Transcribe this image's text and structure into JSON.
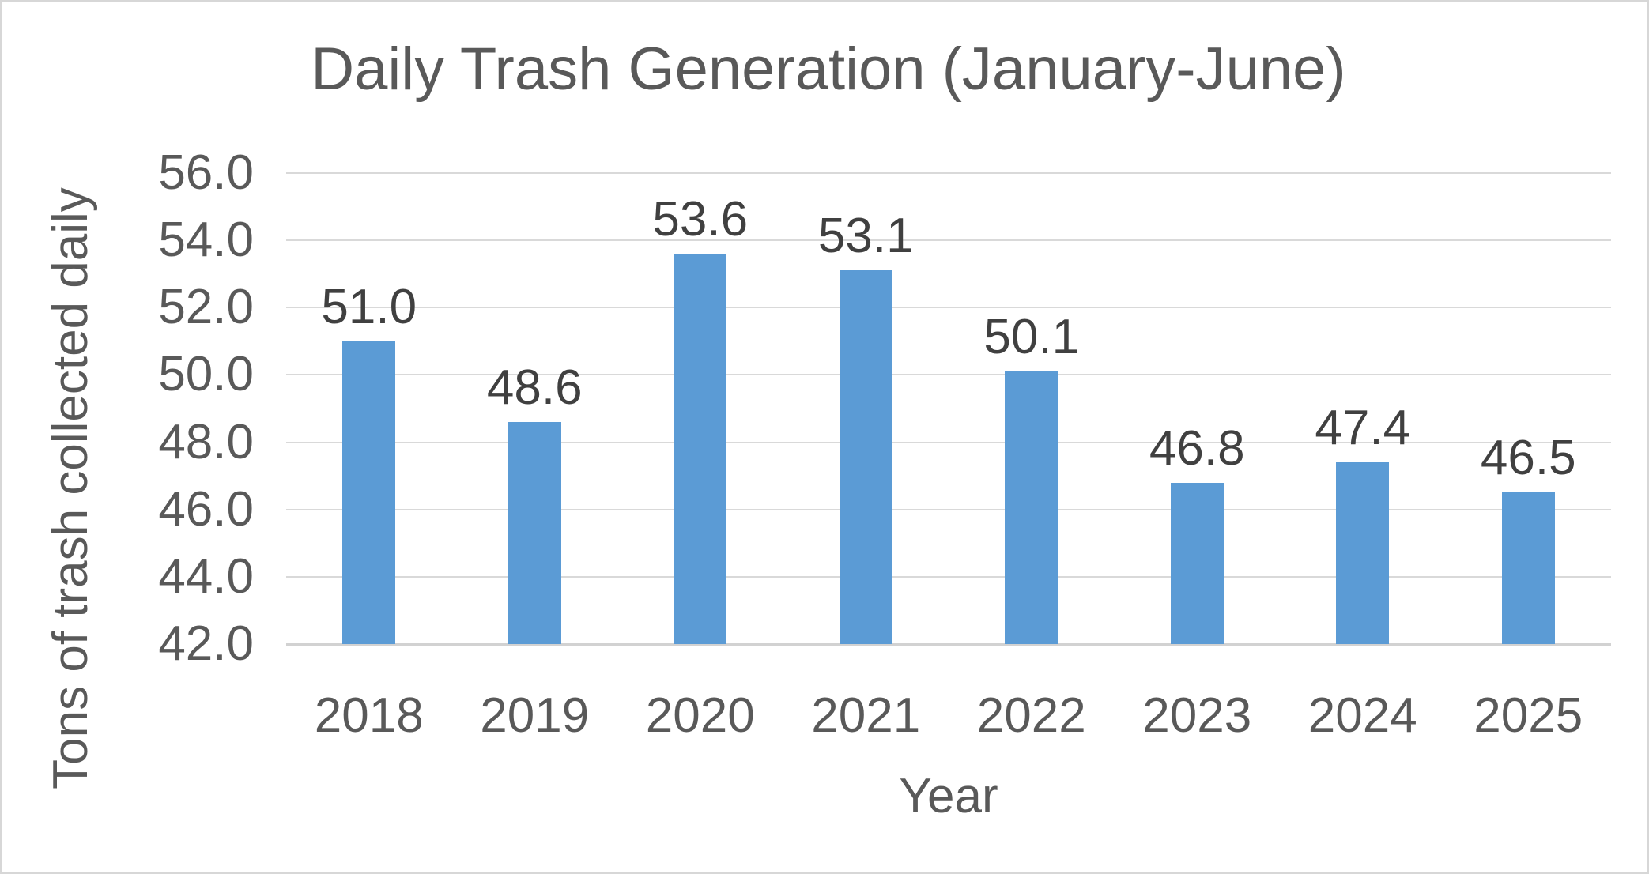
{
  "chart_data": {
    "type": "bar",
    "title": "Daily Trash Generation (January-June)",
    "xlabel": "Year",
    "ylabel": "Tons of trash collected daily",
    "categories": [
      "2018",
      "2019",
      "2020",
      "2021",
      "2022",
      "2023",
      "2024",
      "2025"
    ],
    "values": [
      51.0,
      48.6,
      53.6,
      53.1,
      50.1,
      46.8,
      47.4,
      46.5
    ],
    "data_labels": [
      "51.0",
      "48.6",
      "53.6",
      "53.1",
      "50.1",
      "46.8",
      "47.4",
      "46.5"
    ],
    "y_ticks": [
      "56.0",
      "54.0",
      "52.0",
      "50.0",
      "48.0",
      "46.0",
      "44.0",
      "42.0"
    ],
    "ylim": [
      42.0,
      56.0
    ],
    "grid": "horizontal",
    "legend": "none",
    "colors": {
      "bar": "#5B9BD5",
      "gridline": "#D9D9D9",
      "axis_line": "#D2D2D2",
      "axis_text": "#595959",
      "title_text": "#595959",
      "data_label_text": "#404040"
    }
  }
}
